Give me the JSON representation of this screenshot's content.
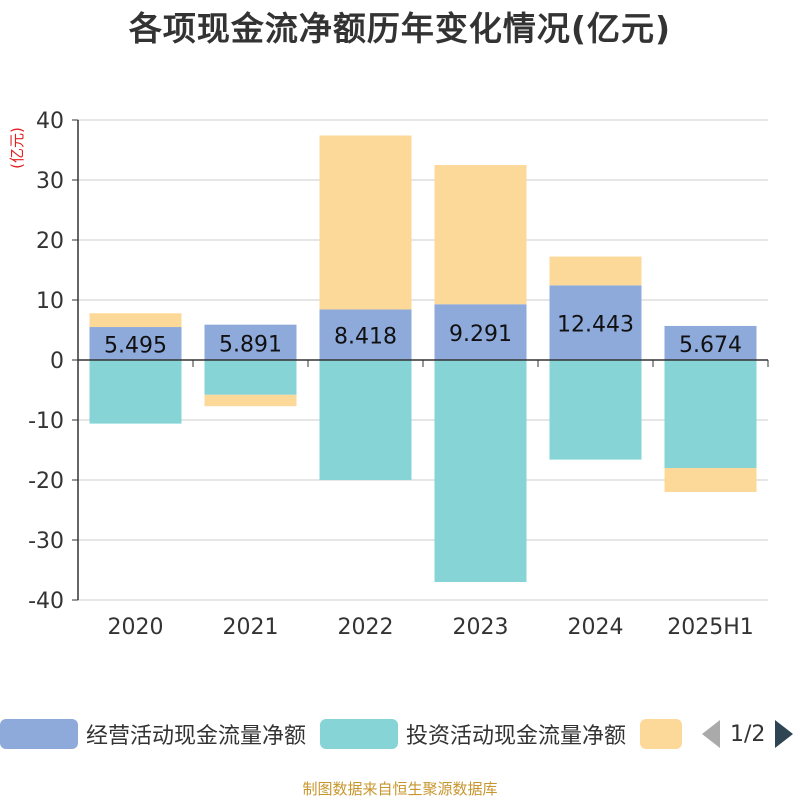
{
  "title": "各项现金流净额历年变化情况(亿元)",
  "unit_label": "(亿元)",
  "source": "制图数据来自恒生聚源数据库",
  "legend": {
    "items": [
      {
        "label": "经营活动现金流量净额",
        "color": "#8eaadb"
      },
      {
        "label": "投资活动现金流量净额",
        "color": "#86d4d6"
      },
      {
        "label": "",
        "color": "#fdd999"
      }
    ],
    "page": "1/2"
  },
  "chart_data": {
    "type": "bar",
    "stacked": true,
    "categories": [
      "2020",
      "2021",
      "2022",
      "2023",
      "2024",
      "2025H1"
    ],
    "ylim": [
      -40,
      40
    ],
    "yticks": [
      40,
      30,
      20,
      10,
      0,
      -10,
      -20,
      -30,
      -40
    ],
    "grid": true,
    "legend_position": "bottom",
    "series": [
      {
        "name": "经营活动现金流量净额",
        "color": "#8eaadb",
        "values": [
          5.495,
          5.891,
          8.418,
          9.291,
          12.443,
          5.674
        ],
        "labels_shown": true
      },
      {
        "name": "投资活动现金流量净额",
        "color": "#86d4d6",
        "values": [
          -10.6,
          -5.8,
          -20.0,
          -37.0,
          -16.6,
          -18.0
        ]
      },
      {
        "color": "#fdd999",
        "values": [
          2.3,
          -1.9,
          29.0,
          23.2,
          4.8,
          -4.0
        ]
      }
    ]
  }
}
